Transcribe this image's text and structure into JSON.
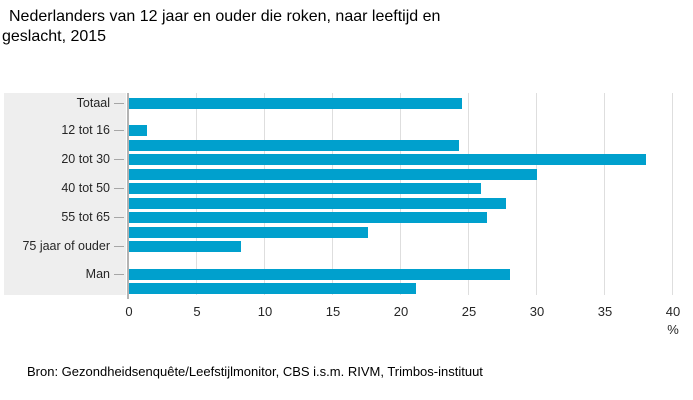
{
  "header": {
    "title_line1": "Nederlanders van 12 jaar en ouder die roken, naar leeftijd en",
    "title_line2": "geslacht, 2015"
  },
  "footer": {
    "source": "Bron: Gezondheidsenquête/Leefstijlmonitor, CBS i.s.m. RIVM, Trimbos-instituut"
  },
  "colors": {
    "bar": "#00a0cd",
    "panel_bg": "#eeeeee",
    "gridline": "#dedede",
    "axis_line": "#b3b3b3",
    "category_tick": "#a6a6a6",
    "text": "#262626",
    "title_text": "#000000"
  },
  "chart_data": {
    "type": "bar",
    "orientation": "horizontal",
    "title": "Nederlanders van 12 jaar en ouder die roken, naar leeftijd en geslacht, 2015",
    "xlabel": "%",
    "xlim": [
      0,
      40
    ],
    "xticks": [
      0,
      5,
      10,
      15,
      20,
      25,
      30,
      35,
      40
    ],
    "grid": true,
    "legend": false,
    "bar_color": "#00a0cd",
    "rows": [
      {
        "label": "Totaal",
        "value": 24.5
      },
      {
        "label": "12 tot 16",
        "value": 1.3
      },
      {
        "label": "",
        "value": 24.3
      },
      {
        "label": "20 tot 30",
        "value": 38.0
      },
      {
        "label": "",
        "value": 30.0
      },
      {
        "label": "40 tot 50",
        "value": 25.9
      },
      {
        "label": "",
        "value": 27.7
      },
      {
        "label": "55 tot 65",
        "value": 26.3
      },
      {
        "label": "",
        "value": 17.6
      },
      {
        "label": "75 jaar of ouder",
        "value": 8.2
      },
      {
        "label": "Man",
        "value": 28.0
      },
      {
        "label": "",
        "value": 21.1
      }
    ],
    "group_gap_after_rows": [
      0,
      9
    ]
  }
}
